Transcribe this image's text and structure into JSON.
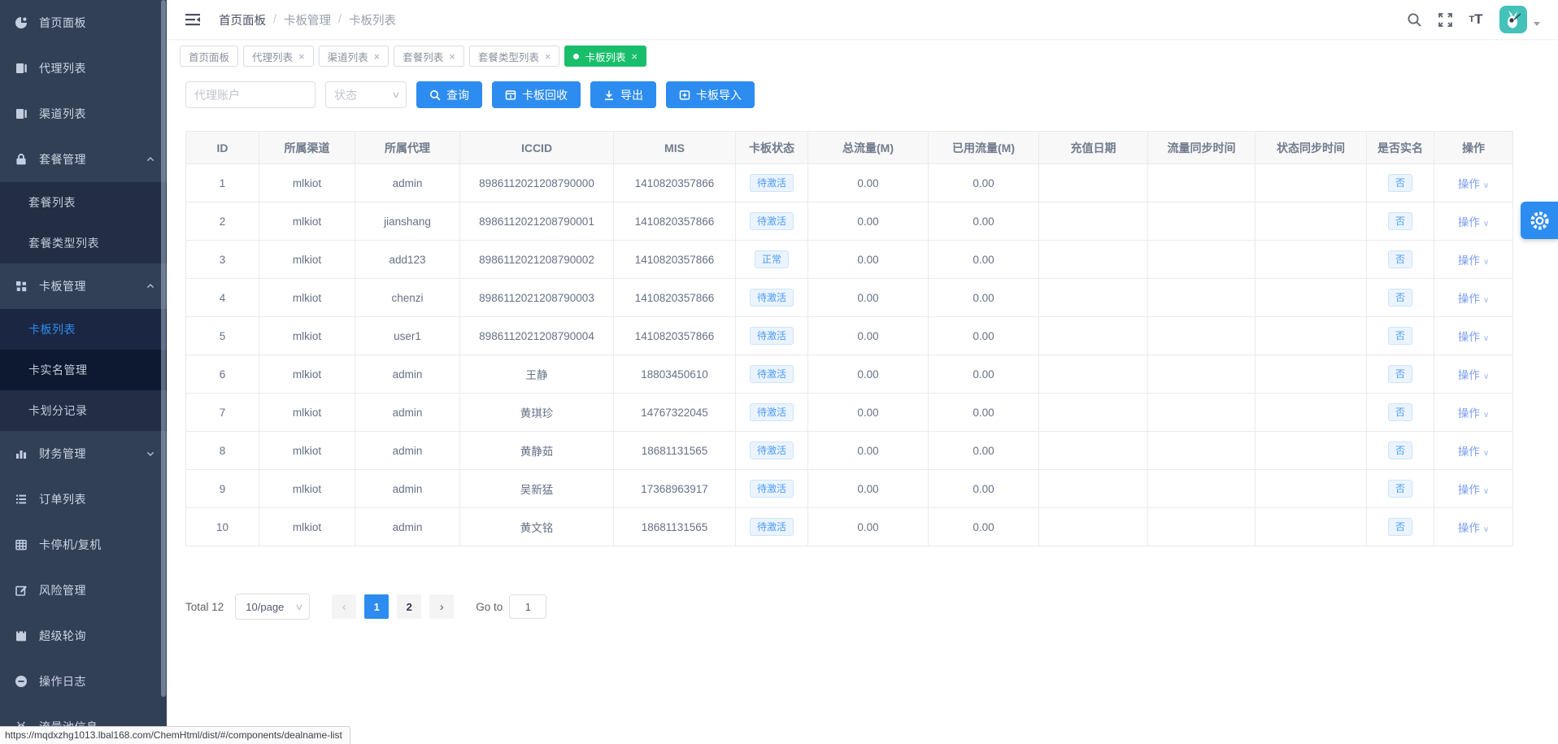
{
  "sidebar": {
    "items": [
      {
        "id": "home-panel",
        "label": "首页面板",
        "icon": "dashboard-icon",
        "level": 1
      },
      {
        "id": "agent-list",
        "label": "代理列表",
        "icon": "agents-icon",
        "level": 1
      },
      {
        "id": "channel-list",
        "label": "渠道列表",
        "icon": "channels-icon",
        "level": 1
      },
      {
        "id": "package-mgmt",
        "label": "套餐管理",
        "icon": "lock-icon",
        "level": 1,
        "chevron": "up"
      },
      {
        "id": "package-list",
        "label": "套餐列表",
        "level": 2
      },
      {
        "id": "package-type-list",
        "label": "套餐类型列表",
        "level": 2
      },
      {
        "id": "card-mgmt",
        "label": "卡板管理",
        "icon": "cards-grid-icon",
        "level": 1,
        "chevron": "up"
      },
      {
        "id": "card-list",
        "label": "卡板列表",
        "level": 2,
        "active": true
      },
      {
        "id": "card-realname",
        "label": "卡实名管理",
        "level": 2,
        "variant": "darkest"
      },
      {
        "id": "card-divide-log",
        "label": "卡划分记录",
        "level": 2
      },
      {
        "id": "finance-mgmt",
        "label": "财务管理",
        "icon": "finance-icon",
        "level": 1,
        "chevron": "down"
      },
      {
        "id": "order-list",
        "label": "订单列表",
        "icon": "orders-icon",
        "level": 1
      },
      {
        "id": "card-stop-resume",
        "label": "卡停机/复机",
        "icon": "card-grid-icon",
        "level": 1
      },
      {
        "id": "risk-mgmt",
        "label": "风险管理",
        "icon": "edit-icon",
        "level": 1
      },
      {
        "id": "super-polling",
        "label": "超级轮询",
        "icon": "polling-icon",
        "level": 1
      },
      {
        "id": "operation-log",
        "label": "操作日志",
        "icon": "log-icon",
        "level": 1
      },
      {
        "id": "flow-pool-info",
        "label": "流量池信息",
        "icon": "pool-icon",
        "level": 1
      }
    ]
  },
  "header": {
    "breadcrumb": [
      "首页面板",
      "卡板管理",
      "卡板列表"
    ],
    "separator": "/"
  },
  "tabs": [
    {
      "label": "首页面板",
      "closable": false,
      "active": false
    },
    {
      "label": "代理列表",
      "closable": true,
      "active": false
    },
    {
      "label": "渠道列表",
      "closable": true,
      "active": false
    },
    {
      "label": "套餐列表",
      "closable": true,
      "active": false
    },
    {
      "label": "套餐类型列表",
      "closable": true,
      "active": false
    },
    {
      "label": "卡板列表",
      "closable": true,
      "active": true
    }
  ],
  "toolbar": {
    "agent_placeholder": "代理账户",
    "status_placeholder": "状态",
    "search_label": "查询",
    "recycle_label": "卡板回收",
    "export_label": "导出",
    "import_label": "卡板导入"
  },
  "table": {
    "columns": [
      "ID",
      "所属渠道",
      "所属代理",
      "ICCID",
      "MIS",
      "卡板状态",
      "总流量(M)",
      "已用流量(M)",
      "充值日期",
      "流量同步时间",
      "状态同步时间",
      "是否实名",
      "操作"
    ],
    "rows": [
      {
        "id": "1",
        "channel": "mlkiot",
        "agent": "admin",
        "iccid": "8986112021208790000",
        "mis": "1410820357866",
        "status": "待激活",
        "total": "0.00",
        "used": "0.00",
        "recharge_date": "",
        "flow_sync": "",
        "status_sync": "",
        "realname": "否",
        "action": "操作"
      },
      {
        "id": "2",
        "channel": "mlkiot",
        "agent": "jianshang",
        "iccid": "8986112021208790001",
        "mis": "1410820357866",
        "status": "待激活",
        "total": "0.00",
        "used": "0.00",
        "recharge_date": "",
        "flow_sync": "",
        "status_sync": "",
        "realname": "否",
        "action": "操作"
      },
      {
        "id": "3",
        "channel": "mlkiot",
        "agent": "add123",
        "iccid": "8986112021208790002",
        "mis": "1410820357866",
        "status": "正常",
        "total": "0.00",
        "used": "0.00",
        "recharge_date": "",
        "flow_sync": "",
        "status_sync": "",
        "realname": "否",
        "action": "操作"
      },
      {
        "id": "4",
        "channel": "mlkiot",
        "agent": "chenzi",
        "iccid": "8986112021208790003",
        "mis": "1410820357866",
        "status": "待激活",
        "total": "0.00",
        "used": "0.00",
        "recharge_date": "",
        "flow_sync": "",
        "status_sync": "",
        "realname": "否",
        "action": "操作"
      },
      {
        "id": "5",
        "channel": "mlkiot",
        "agent": "user1",
        "iccid": "8986112021208790004",
        "mis": "1410820357866",
        "status": "待激活",
        "total": "0.00",
        "used": "0.00",
        "recharge_date": "",
        "flow_sync": "",
        "status_sync": "",
        "realname": "否",
        "action": "操作"
      },
      {
        "id": "6",
        "channel": "mlkiot",
        "agent": "admin",
        "iccid": "王静",
        "mis": "18803450610",
        "status": "待激活",
        "total": "0.00",
        "used": "0.00",
        "recharge_date": "",
        "flow_sync": "",
        "status_sync": "",
        "realname": "否",
        "action": "操作"
      },
      {
        "id": "7",
        "channel": "mlkiot",
        "agent": "admin",
        "iccid": "黄琪珍",
        "mis": "14767322045",
        "status": "待激活",
        "total": "0.00",
        "used": "0.00",
        "recharge_date": "",
        "flow_sync": "",
        "status_sync": "",
        "realname": "否",
        "action": "操作"
      },
      {
        "id": "8",
        "channel": "mlkiot",
        "agent": "admin",
        "iccid": "黄静茹",
        "mis": "18681131565",
        "status": "待激活",
        "total": "0.00",
        "used": "0.00",
        "recharge_date": "",
        "flow_sync": "",
        "status_sync": "",
        "realname": "否",
        "action": "操作"
      },
      {
        "id": "9",
        "channel": "mlkiot",
        "agent": "admin",
        "iccid": "吴新猛",
        "mis": "17368963917",
        "status": "待激活",
        "total": "0.00",
        "used": "0.00",
        "recharge_date": "",
        "flow_sync": "",
        "status_sync": "",
        "realname": "否",
        "action": "操作"
      },
      {
        "id": "10",
        "channel": "mlkiot",
        "agent": "admin",
        "iccid": "黄文铭",
        "mis": "18681131565",
        "status": "待激活",
        "total": "0.00",
        "used": "0.00",
        "recharge_date": "",
        "flow_sync": "",
        "status_sync": "",
        "realname": "否",
        "action": "操作"
      }
    ]
  },
  "pagination": {
    "total_label": "Total 12",
    "page_size": "10/page",
    "pages": [
      "1",
      "2"
    ],
    "current": "1",
    "goto_label": "Go to",
    "goto_value": "1"
  },
  "statusbar": {
    "url": "https://mqdxzhg1013.lbal168.com/ChemHtml/dist/#/components/dealname-list"
  },
  "colors": {
    "primary": "#2d8cf0",
    "success": "#19be6b",
    "sidebar_bg": "#324056",
    "submenu_bg": "#232e44"
  }
}
